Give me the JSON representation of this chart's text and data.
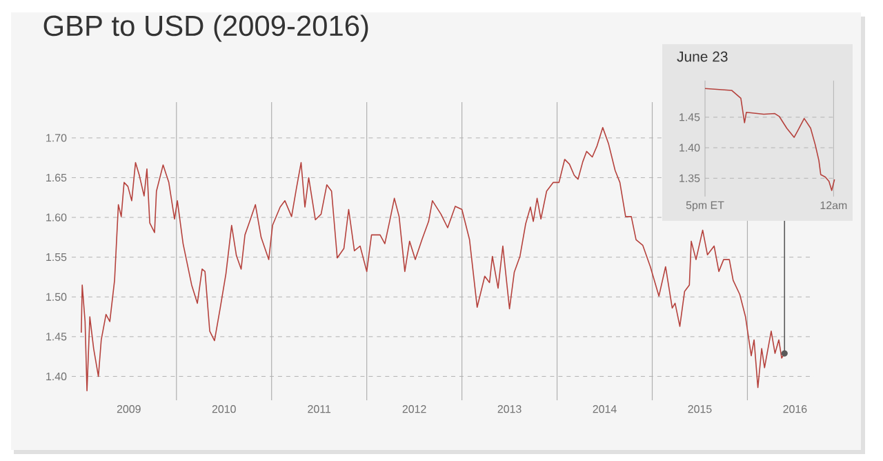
{
  "chart_data": [
    {
      "type": "line",
      "title": "GBP to USD (2009-2016)",
      "color": "#b5413c",
      "x": [
        2009.0,
        2009.01,
        2009.04,
        2009.06,
        2009.09,
        2009.13,
        2009.18,
        2009.21,
        2009.26,
        2009.3,
        2009.35,
        2009.39,
        2009.42,
        2009.45,
        2009.49,
        2009.53,
        2009.57,
        2009.61,
        2009.66,
        2009.69,
        2009.72,
        2009.77,
        2009.79,
        2009.86,
        2009.92,
        2009.98,
        2010.01,
        2010.07,
        2010.16,
        2010.22,
        2010.27,
        2010.3,
        2010.35,
        2010.4,
        2010.46,
        2010.52,
        2010.58,
        2010.63,
        2010.68,
        2010.72,
        2010.77,
        2010.83,
        2010.89,
        2010.97,
        2011.01,
        2011.09,
        2011.14,
        2011.21,
        2011.26,
        2011.31,
        2011.35,
        2011.39,
        2011.46,
        2011.52,
        2011.58,
        2011.63,
        2011.69,
        2011.76,
        2011.81,
        2011.87,
        2011.93,
        2012.0,
        2012.05,
        2012.14,
        2012.19,
        2012.24,
        2012.29,
        2012.34,
        2012.4,
        2012.45,
        2012.51,
        2012.58,
        2012.65,
        2012.69,
        2012.78,
        2012.85,
        2012.93,
        2013.0,
        2013.08,
        2013.16,
        2013.24,
        2013.29,
        2013.32,
        2013.38,
        2013.43,
        2013.5,
        2013.55,
        2013.61,
        2013.67,
        2013.72,
        2013.75,
        2013.79,
        2013.83,
        2013.89,
        2013.96,
        2014.02,
        2014.08,
        2014.13,
        2014.18,
        2014.22,
        2014.27,
        2014.31,
        2014.37,
        2014.42,
        2014.48,
        2014.54,
        2014.61,
        2014.66,
        2014.72,
        2014.78,
        2014.83,
        2014.9,
        2014.98,
        2015.07,
        2015.14,
        2015.21,
        2015.24,
        2015.29,
        2015.34,
        2015.39,
        2015.41,
        2015.46,
        2015.53,
        2015.58,
        2015.65,
        2015.7,
        2015.75,
        2015.81,
        2015.85,
        2015.92,
        2015.98,
        2016.04,
        2016.07,
        2016.11,
        2016.15,
        2016.18,
        2016.25,
        2016.29,
        2016.33,
        2016.36,
        2016.39
      ],
      "values": [
        1.455,
        1.515,
        1.469,
        1.382,
        1.475,
        1.435,
        1.4,
        1.446,
        1.478,
        1.469,
        1.521,
        1.616,
        1.601,
        1.644,
        1.639,
        1.621,
        1.669,
        1.653,
        1.627,
        1.661,
        1.593,
        1.581,
        1.633,
        1.666,
        1.644,
        1.598,
        1.621,
        1.567,
        1.515,
        1.492,
        1.535,
        1.532,
        1.457,
        1.445,
        1.486,
        1.529,
        1.59,
        1.552,
        1.535,
        1.578,
        1.595,
        1.616,
        1.575,
        1.547,
        1.59,
        1.613,
        1.621,
        1.601,
        1.636,
        1.669,
        1.613,
        1.65,
        1.597,
        1.604,
        1.641,
        1.633,
        1.549,
        1.561,
        1.61,
        1.558,
        1.564,
        1.532,
        1.578,
        1.578,
        1.567,
        1.595,
        1.624,
        1.601,
        1.532,
        1.57,
        1.547,
        1.572,
        1.595,
        1.621,
        1.604,
        1.587,
        1.614,
        1.61,
        1.572,
        1.487,
        1.526,
        1.518,
        1.551,
        1.511,
        1.564,
        1.485,
        1.531,
        1.551,
        1.592,
        1.613,
        1.595,
        1.624,
        1.598,
        1.633,
        1.644,
        1.644,
        1.673,
        1.667,
        1.653,
        1.648,
        1.67,
        1.683,
        1.676,
        1.69,
        1.713,
        1.693,
        1.659,
        1.644,
        1.601,
        1.601,
        1.572,
        1.565,
        1.538,
        1.501,
        1.538,
        1.486,
        1.492,
        1.463,
        1.507,
        1.515,
        1.57,
        1.547,
        1.584,
        1.553,
        1.564,
        1.532,
        1.547,
        1.547,
        1.521,
        1.503,
        1.475,
        1.426,
        1.446,
        1.386,
        1.435,
        1.411,
        1.457,
        1.429,
        1.446,
        1.423,
        1.429
      ],
      "xlim": [
        2008.9,
        2016.7
      ],
      "ylim": [
        1.37,
        1.745
      ],
      "xticks": [
        {
          "value": 2009.5,
          "label": "2009"
        },
        {
          "value": 2010.5,
          "label": "2010"
        },
        {
          "value": 2011.5,
          "label": "2011"
        },
        {
          "value": 2012.5,
          "label": "2012"
        },
        {
          "value": 2013.5,
          "label": "2013"
        },
        {
          "value": 2014.5,
          "label": "2014"
        },
        {
          "value": 2015.5,
          "label": "2015"
        },
        {
          "value": 2016.5,
          "label": "2016"
        }
      ],
      "yticks": [
        {
          "value": 1.4,
          "label": "1.40"
        },
        {
          "value": 1.45,
          "label": "1.45"
        },
        {
          "value": 1.5,
          "label": "1.50"
        },
        {
          "value": 1.55,
          "label": "1.55"
        },
        {
          "value": 1.6,
          "label": "1.60"
        },
        {
          "value": 1.65,
          "label": "1.65"
        },
        {
          "value": 1.7,
          "label": "1.70"
        }
      ],
      "grid": "y",
      "ref_lines": [
        {
          "axis": "x",
          "value": 2010,
          "color": "#b0b0b0"
        },
        {
          "axis": "x",
          "value": 2011,
          "color": "#b0b0b0"
        },
        {
          "axis": "x",
          "value": 2012,
          "color": "#b0b0b0"
        },
        {
          "axis": "x",
          "value": 2013,
          "color": "#b0b0b0"
        },
        {
          "axis": "x",
          "value": 2014,
          "color": "#b0b0b0"
        },
        {
          "axis": "x",
          "value": 2015,
          "color": "#b0b0b0"
        },
        {
          "axis": "x",
          "value": 2016,
          "color": "#b0b0b0"
        }
      ]
    },
    {
      "type": "line",
      "title": "June 23",
      "color": "#b5413c",
      "x": [
        "2016-06-23T17:00",
        "2016-06-23T18:27",
        "2016-06-23T18:57",
        "2016-06-23T19:09",
        "2016-06-23T19:15",
        "2016-06-23T20:12",
        "2016-06-23T20:48",
        "2016-06-23T21:03",
        "2016-06-23T21:27",
        "2016-06-23T21:51",
        "2016-06-23T22:03",
        "2016-06-23T22:24",
        "2016-06-23T22:45",
        "2016-06-23T23:00",
        "2016-06-23T23:12",
        "2016-06-23T23:18",
        "2016-06-23T23:33",
        "2016-06-23T23:45",
        "2016-06-23T23:54",
        "2016-06-24T00:03"
      ],
      "values": [
        1.497,
        1.494,
        1.481,
        1.441,
        1.458,
        1.455,
        1.456,
        1.451,
        1.432,
        1.417,
        1.428,
        1.448,
        1.432,
        1.405,
        1.379,
        1.356,
        1.352,
        1.345,
        1.33,
        1.348
      ],
      "xlim": [
        "2016-06-23T17:00",
        "2016-06-24T00:06"
      ],
      "ylim": [
        1.32,
        1.51
      ],
      "xticks": [
        {
          "value": "2016-06-23T17:00",
          "label": "5pm ET"
        },
        {
          "value": "2016-06-24T00:00",
          "label": "12am"
        }
      ],
      "yticks": [
        {
          "value": 1.35,
          "label": "1.35"
        },
        {
          "value": 1.4,
          "label": "1.40"
        },
        {
          "value": 1.45,
          "label": "1.45"
        }
      ],
      "grid": true
    }
  ]
}
